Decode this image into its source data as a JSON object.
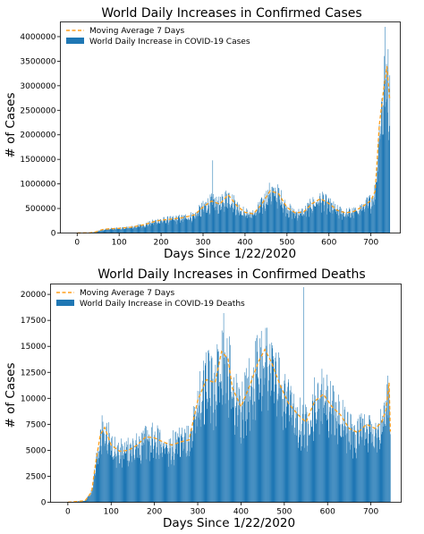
{
  "chart_data": [
    {
      "type": "bar",
      "title": "World Daily Increases in Confirmed Cases",
      "xlabel": "Days Since 1/22/2020",
      "ylabel": "# of Cases",
      "xlim": [
        -40,
        770
      ],
      "ylim": [
        0,
        4300000
      ],
      "x_ticks": [
        0,
        100,
        200,
        300,
        400,
        500,
        600,
        700
      ],
      "y_ticks": [
        0,
        500000,
        1000000,
        1500000,
        2000000,
        2500000,
        3000000,
        3500000,
        4000000
      ],
      "grid": false,
      "legend_position": "top-left",
      "series": [
        {
          "name": "Moving Average 7 Days",
          "kind": "line",
          "color": "#ff9f1c",
          "style": "dashed"
        },
        {
          "name": "World Daily Increase in COVID-19 Cases",
          "kind": "bar",
          "color": "#1f77b4"
        }
      ],
      "profile": {
        "x": [
          0,
          30,
          45,
          60,
          75,
          100,
          130,
          160,
          190,
          220,
          250,
          280,
          300,
          320,
          340,
          360,
          380,
          400,
          420,
          440,
          460,
          480,
          500,
          520,
          540,
          560,
          580,
          600,
          620,
          640,
          660,
          680,
          700,
          710,
          715,
          720,
          730,
          738,
          745
        ],
        "y": [
          500,
          2500,
          25000,
          70000,
          85000,
          95000,
          120000,
          170000,
          250000,
          280000,
          310000,
          370000,
          530000,
          650000,
          590000,
          780000,
          560000,
          420000,
          390000,
          590000,
          860000,
          800000,
          520000,
          410000,
          430000,
          600000,
          700000,
          600000,
          460000,
          410000,
          440000,
          540000,
          660000,
          850000,
          1500000,
          2200000,
          2900000,
          3400000,
          2700000
        ]
      },
      "spikes": [
        {
          "x": 323,
          "y": 1480000
        },
        {
          "x": 734,
          "y": 4200000
        }
      ]
    },
    {
      "type": "bar",
      "title": "World Daily Increases in Confirmed Deaths",
      "xlabel": "Days Since 1/22/2020",
      "ylabel": "# of Cases",
      "xlim": [
        -40,
        770
      ],
      "ylim": [
        0,
        21000
      ],
      "x_ticks": [
        0,
        100,
        200,
        300,
        400,
        500,
        600,
        700
      ],
      "y_ticks": [
        0,
        2500,
        5000,
        7500,
        10000,
        12500,
        15000,
        17500,
        20000
      ],
      "grid": false,
      "legend_position": "top-left",
      "series": [
        {
          "name": "Moving Average 7 Days",
          "kind": "line",
          "color": "#ff9f1c",
          "style": "dashed"
        },
        {
          "name": "World Daily Increase in COVID-19 Deaths",
          "kind": "bar",
          "color": "#1f77b4"
        }
      ],
      "profile": {
        "x": [
          0,
          40,
          55,
          65,
          75,
          85,
          100,
          120,
          140,
          160,
          180,
          200,
          220,
          240,
          260,
          280,
          300,
          320,
          340,
          355,
          370,
          380,
          400,
          420,
          440,
          455,
          470,
          490,
          510,
          530,
          550,
          570,
          590,
          610,
          630,
          650,
          670,
          690,
          710,
          725,
          735,
          742,
          745
        ],
        "y": [
          0,
          150,
          1000,
          4000,
          6500,
          7200,
          5500,
          4900,
          5000,
          5500,
          6300,
          6200,
          5800,
          5500,
          5800,
          6000,
          9800,
          11800,
          11500,
          14500,
          13800,
          11000,
          9200,
          11200,
          13500,
          14700,
          13500,
          11300,
          9500,
          8500,
          7700,
          9700,
          10400,
          9200,
          8400,
          7100,
          6700,
          7500,
          7100,
          7700,
          8900,
          11500,
          6800
        ]
      },
      "spikes": [
        {
          "x": 545,
          "y": 20700
        },
        {
          "x": 360,
          "y": 18200
        }
      ]
    }
  ]
}
